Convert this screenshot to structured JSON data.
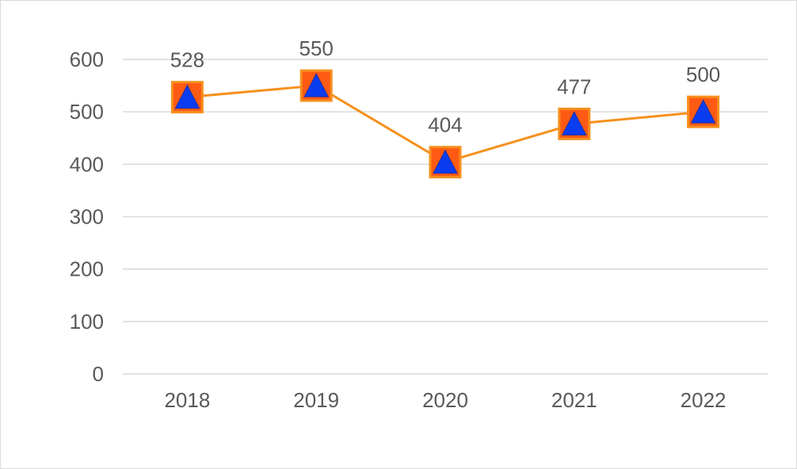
{
  "chart_data": {
    "type": "line",
    "categories": [
      "2018",
      "2019",
      "2020",
      "2021",
      "2022"
    ],
    "series": [
      {
        "values": [
          528,
          550,
          404,
          477,
          500
        ]
      }
    ],
    "y_ticks": [
      "0",
      "100",
      "200",
      "300",
      "400",
      "500",
      "600"
    ],
    "ylim": [
      0,
      600
    ],
    "grid": true,
    "legend": "none",
    "line_color": "#f7901e",
    "marker_fill": "#ff5a14",
    "marker_border": "#f7901e",
    "marker_inner_color": "#0a3cf0",
    "gridline_color": "#d9d9d9",
    "text_color": "#595959"
  }
}
